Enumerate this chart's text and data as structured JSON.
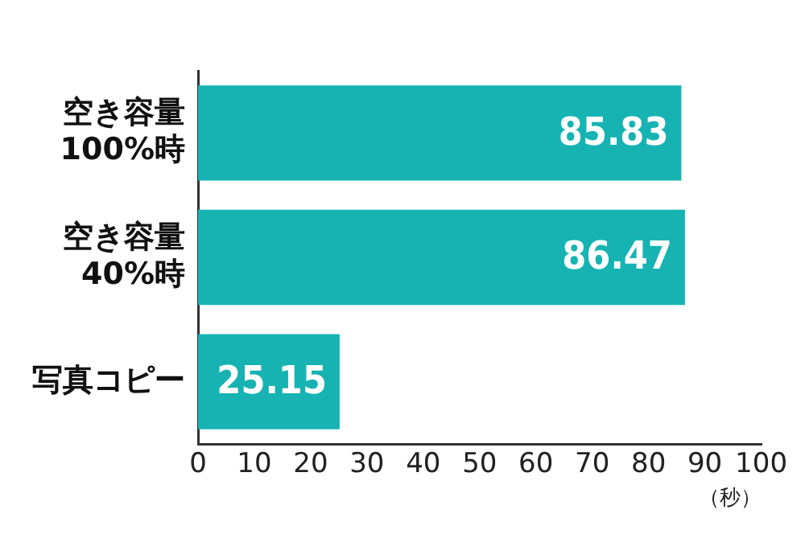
{
  "chart_data": {
    "type": "bar",
    "orientation": "horizontal",
    "categories": [
      "空き容量\n100%時",
      "空き容量\n40%時",
      "写真コピー"
    ],
    "values": [
      85.83,
      86.47,
      25.15
    ],
    "color": "#17b3b3",
    "xlim": [
      0,
      100
    ],
    "xticks": [
      0,
      10,
      20,
      30,
      40,
      50,
      60,
      70,
      80,
      90,
      100
    ],
    "xlabel": "（秒）",
    "grid": false,
    "data_labels": true
  }
}
